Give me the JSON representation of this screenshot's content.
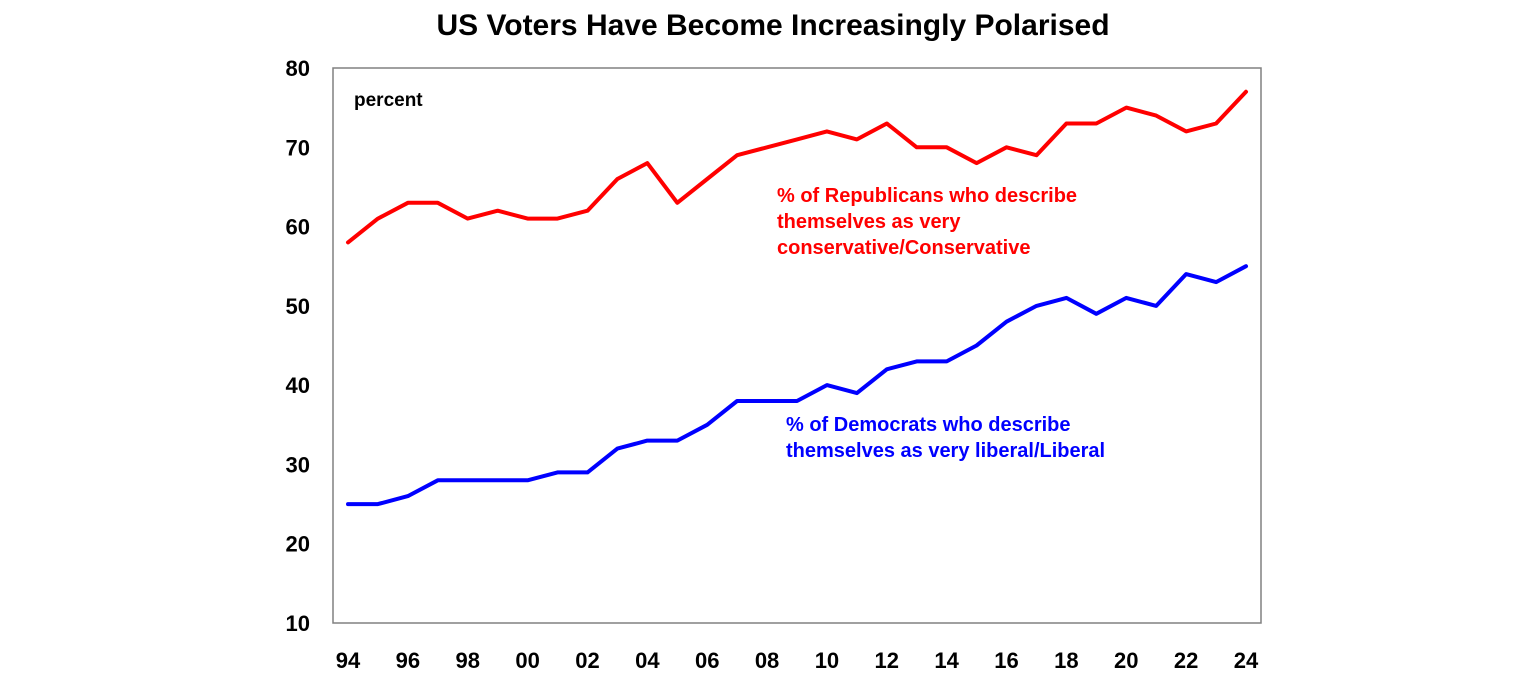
{
  "chart_data": {
    "type": "line",
    "title": "US Voters Have Become Increasingly Polarised",
    "ylabel": "percent",
    "xlabel": "",
    "ylim": [
      10,
      80
    ],
    "yticks": [
      10,
      20,
      30,
      40,
      50,
      60,
      70,
      80
    ],
    "xlim": [
      1994,
      2024
    ],
    "xticks": [
      1994,
      1996,
      1998,
      2000,
      2002,
      2004,
      2006,
      2008,
      2010,
      2012,
      2014,
      2016,
      2018,
      2020,
      2022,
      2024
    ],
    "xtick_labels": [
      "94",
      "96",
      "98",
      "00",
      "02",
      "04",
      "06",
      "08",
      "10",
      "12",
      "14",
      "16",
      "18",
      "20",
      "22",
      "24"
    ],
    "grid": false,
    "legend": "none (inline annotations)",
    "x": [
      1994,
      1995,
      1996,
      1997,
      1998,
      1999,
      2000,
      2001,
      2002,
      2003,
      2004,
      2005,
      2006,
      2007,
      2008,
      2009,
      2010,
      2011,
      2012,
      2013,
      2014,
      2015,
      2016,
      2017,
      2018,
      2019,
      2020,
      2021,
      2022,
      2023,
      2024
    ],
    "series": [
      {
        "name": "Republicans",
        "color": "#ff0000",
        "annotation": [
          "% of Republicans who describe",
          "themselves as very",
          "conservative/Conservative"
        ],
        "values": [
          58,
          61,
          63,
          63,
          61,
          62,
          61,
          61,
          62,
          66,
          68,
          63,
          66,
          69,
          70,
          71,
          72,
          71,
          73,
          70,
          70,
          68,
          70,
          69,
          73,
          73,
          75,
          74,
          72,
          73,
          77
        ]
      },
      {
        "name": "Democrats",
        "color": "#0000ff",
        "annotation": [
          "% of Democrats who describe",
          "themselves as very liberal/Liberal"
        ],
        "values": [
          25,
          25,
          26,
          28,
          28,
          28,
          28,
          29,
          29,
          32,
          33,
          33,
          35,
          38,
          38,
          38,
          40,
          39,
          42,
          43,
          43,
          45,
          48,
          50,
          51,
          49,
          51,
          50,
          54,
          53,
          55
        ]
      }
    ]
  }
}
